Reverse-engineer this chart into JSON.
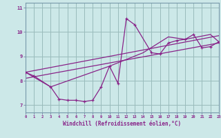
{
  "xlabel": "Windchill (Refroidissement éolien,°C)",
  "bg_color": "#cce8e8",
  "line_color": "#882288",
  "grid_color": "#99bbbb",
  "x_min": 0,
  "x_max": 23,
  "y_min": 6.7,
  "y_max": 11.2,
  "yticks": [
    7,
    8,
    9,
    10,
    11
  ],
  "xticks": [
    0,
    1,
    2,
    3,
    4,
    5,
    6,
    7,
    8,
    9,
    10,
    11,
    12,
    13,
    14,
    15,
    16,
    17,
    18,
    19,
    20,
    21,
    22,
    23
  ],
  "series1_x": [
    0,
    1,
    3,
    4,
    5,
    6,
    7,
    8,
    9,
    10,
    11,
    12,
    13,
    15,
    16,
    17,
    18,
    19,
    20,
    21,
    22,
    23
  ],
  "series1_y": [
    8.35,
    8.2,
    7.75,
    7.25,
    7.2,
    7.2,
    7.15,
    7.2,
    7.75,
    8.6,
    7.9,
    10.55,
    10.3,
    9.15,
    9.1,
    9.55,
    9.65,
    9.7,
    9.9,
    9.35,
    9.4,
    9.6
  ],
  "series2_x": [
    0,
    3,
    10,
    14,
    17,
    19,
    22,
    23
  ],
  "series2_y": [
    8.35,
    7.75,
    8.6,
    9.15,
    9.8,
    9.7,
    9.9,
    9.6
  ],
  "series3_x": [
    0,
    23
  ],
  "series3_y": [
    8.1,
    9.55
  ],
  "series4_x": [
    0,
    23
  ],
  "series4_y": [
    8.35,
    9.85
  ]
}
